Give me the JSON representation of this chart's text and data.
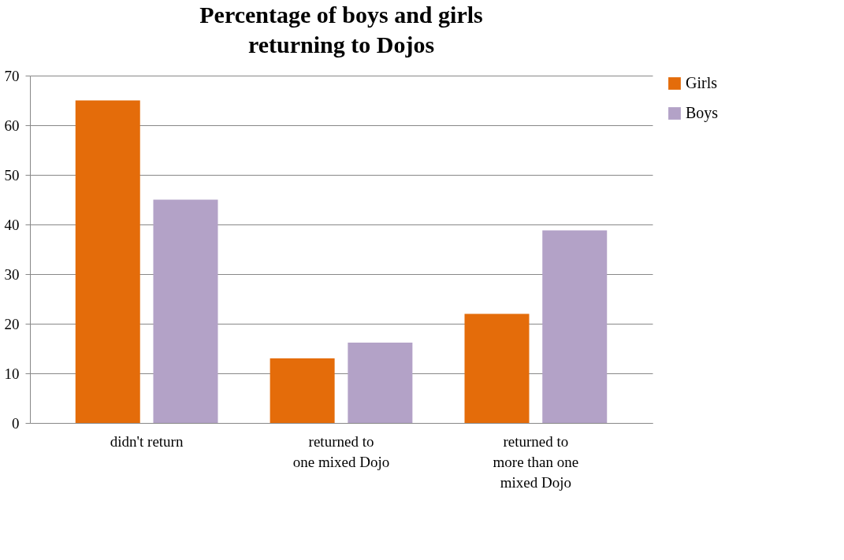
{
  "chart_data": {
    "type": "bar",
    "title": "Percentage of boys and girls\nreturning to Dojos",
    "categories": [
      "didn't return",
      "returned to\none mixed Dojo",
      "returned to\nmore than one\nmixed Dojo"
    ],
    "series": [
      {
        "name": "Girls",
        "color": "#e46c0a",
        "values": [
          65,
          13,
          22
        ]
      },
      {
        "name": "Boys",
        "color": "#b3a2c7",
        "values": [
          45,
          16.2,
          38.8
        ]
      }
    ],
    "ylim": [
      0,
      70
    ],
    "yticks": [
      0,
      10,
      20,
      30,
      40,
      50,
      60,
      70
    ],
    "grid": "y",
    "legend": "right"
  }
}
